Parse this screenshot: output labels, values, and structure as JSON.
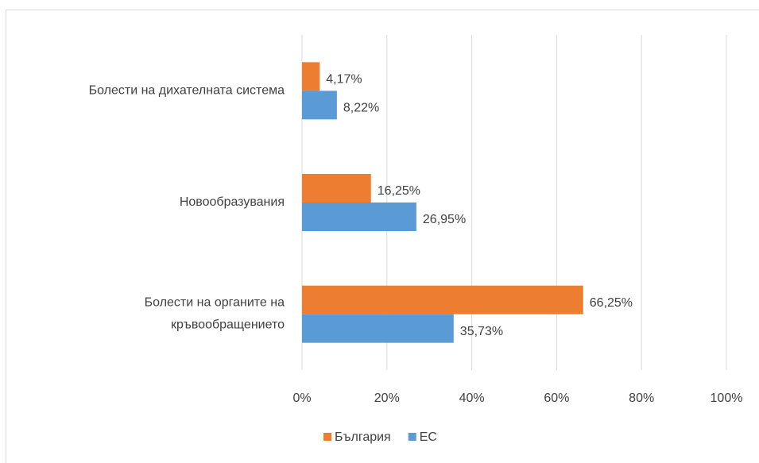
{
  "chart_data": {
    "type": "barh",
    "categories": [
      "Болести на дихателната система",
      "Новообразувания",
      "Болести на органите на кръвообращението"
    ],
    "series": [
      {
        "name": "България",
        "color": "#ED7D31",
        "values": [
          4.17,
          16.25,
          66.25
        ],
        "value_labels": [
          "4,17%",
          "16,25%",
          "66,25%"
        ]
      },
      {
        "name": "ЕС",
        "color": "#5B9BD5",
        "values": [
          8.22,
          26.95,
          35.73
        ],
        "value_labels": [
          "8,22%",
          "26,95%",
          "35,73%"
        ]
      }
    ],
    "xlim": [
      0,
      100
    ],
    "xticks": [
      {
        "value": 0,
        "label": "0%"
      },
      {
        "value": 20,
        "label": "20%"
      },
      {
        "value": 40,
        "label": "40%"
      },
      {
        "value": 60,
        "label": "60%"
      },
      {
        "value": 80,
        "label": "80%"
      },
      {
        "value": 100,
        "label": "100%"
      }
    ],
    "grid": true,
    "legend": "bottom"
  }
}
